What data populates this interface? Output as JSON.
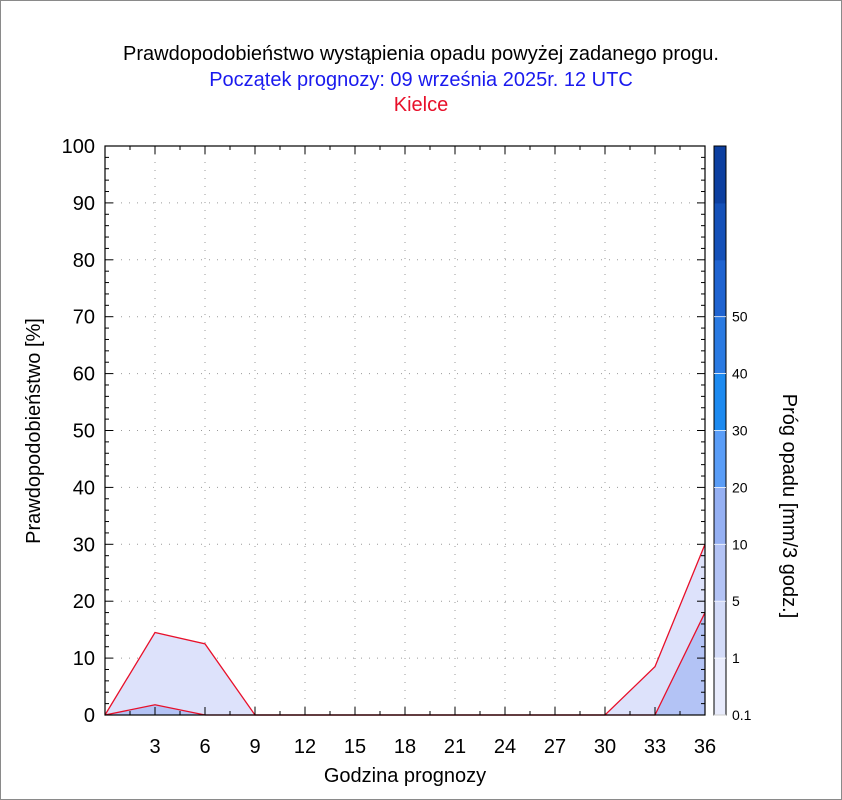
{
  "chart_data": {
    "type": "area",
    "title": "Prawdopodobieństwo wystąpienia opadu powyżej zadanego progu.",
    "subtitle": "Początek prognozy: 09 września 2025r. 12 UTC",
    "location": "Kielce",
    "xlabel": "Godzina prognozy",
    "ylabel": "Prawdopodobieństwo [%]",
    "colorbar_label": "Próg opadu [mm/3 godz.]",
    "x": [
      0,
      3,
      6,
      9,
      12,
      15,
      18,
      21,
      24,
      27,
      30,
      33,
      36
    ],
    "x_ticks": [
      "3",
      "6",
      "9",
      "12",
      "15",
      "18",
      "21",
      "24",
      "27",
      "30",
      "33",
      "36"
    ],
    "y_ticks": [
      "0",
      "10",
      "20",
      "30",
      "40",
      "50",
      "60",
      "70",
      "80",
      "90",
      "100"
    ],
    "xlim": [
      0,
      36
    ],
    "ylim": [
      0,
      100
    ],
    "grid": "dotted",
    "series": [
      {
        "threshold": 0.1,
        "color": "#dde2fb",
        "values": [
          0,
          14.5,
          12.5,
          0,
          0,
          0,
          0,
          0,
          0,
          0,
          0,
          8.5,
          30
        ]
      },
      {
        "threshold": 1,
        "color": "#b3c3f5",
        "values": [
          0,
          1.8,
          0,
          0,
          0,
          0,
          0,
          0,
          0,
          0,
          0,
          0,
          18
        ]
      }
    ],
    "colorbar": {
      "tick_labels": [
        "0.1",
        "1",
        "5",
        "10",
        "20",
        "30",
        "40",
        "50"
      ],
      "colors": [
        "#e8ebfc",
        "#d3dbf8",
        "#b3c3f5",
        "#95b0f3",
        "#5a9df7",
        "#1c8af0",
        "#2a7ae2",
        "#1f63d0",
        "#1450b8",
        "#0c3fa0"
      ]
    }
  }
}
